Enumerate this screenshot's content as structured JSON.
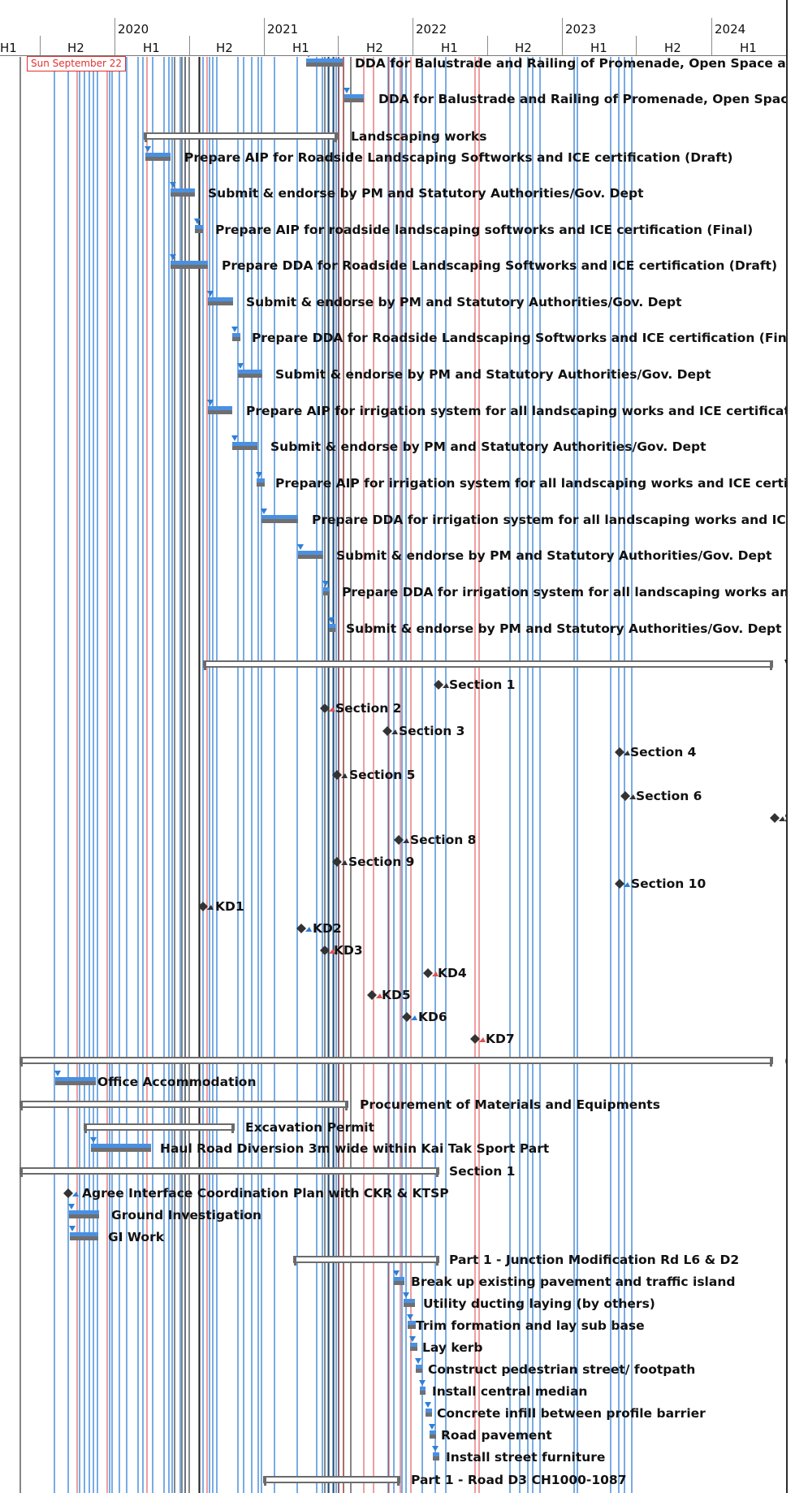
{
  "timeline": {
    "years": [
      "2020",
      "2021",
      "2022",
      "2023",
      "2024"
    ],
    "halves": [
      "H1",
      "H2",
      "H1",
      "H2",
      "H1",
      "H2",
      "H1",
      "H2",
      "H1",
      "H2",
      "H1"
    ],
    "current_date_label": "Sun September 22"
  },
  "colors": {
    "dependency_blue": "#2f7fd6",
    "critical_red": "#e05050",
    "summary_bar": "#6b6b6b",
    "task_bar": "#4a90e2",
    "progress_bar": "#6f6f6f",
    "milestone_dark": "#333333"
  },
  "tasks": [
    {
      "label": "DDA for Balustrade and Railing of Promenade, Open Space and A"
    },
    {
      "label": "DDA for Balustrade and Railing of Promenade, Open Space an"
    },
    {
      "label": "Landscaping works"
    },
    {
      "label": "Prepare AIP for Roadside Landscaping Softworks and ICE certification (Draft)"
    },
    {
      "label": "Submit & endorse by PM and Statutory Authorities/Gov. Dept"
    },
    {
      "label": "Prepare AIP for roadside landscaping softworks and ICE certification (Final)"
    },
    {
      "label": "Prepare DDA for Roadside Landscaping Softworks and ICE certification (Draft)"
    },
    {
      "label": "Submit & endorse by PM and Statutory Authorities/Gov. Dept"
    },
    {
      "label": "Prepare DDA for Roadside Landscaping Softworks and ICE certification (Final)"
    },
    {
      "label": "Submit & endorse by PM and Statutory Authorities/Gov. Dept"
    },
    {
      "label": "Prepare AIP for irrigation system for all landscaping works and ICE certification ("
    },
    {
      "label": "Submit & endorse by PM and Statutory Authorities/Gov. Dept"
    },
    {
      "label": "Prepare AIP for irrigation system for all landscaping works and ICE certificati"
    },
    {
      "label": "Prepare DDA for irrigation system for all landscaping works and ICE cer"
    },
    {
      "label": "Submit & endorse by PM and Statutory Authorities/Gov. Dept"
    },
    {
      "label": "Prepare DDA for irrigation system for all landscaping works and IC"
    },
    {
      "label": "Submit & endorse by PM and Statutory Authorities/Gov. Dept"
    },
    {
      "label": "V"
    },
    {
      "label": "Section 1"
    },
    {
      "label": "Section 2"
    },
    {
      "label": "Section 3"
    },
    {
      "label": "Section 4"
    },
    {
      "label": "Section 5"
    },
    {
      "label": "Section 6"
    },
    {
      "label": "S"
    },
    {
      "label": "Section 8"
    },
    {
      "label": "Section 9"
    },
    {
      "label": "Section 10"
    },
    {
      "label": "KD1"
    },
    {
      "label": "KD2"
    },
    {
      "label": "KD3"
    },
    {
      "label": "KD4"
    },
    {
      "label": "KD5"
    },
    {
      "label": "KD6"
    },
    {
      "label": "KD7"
    },
    {
      "label": "("
    },
    {
      "label": "Office Accommodation"
    },
    {
      "label": "Procurement of Materials and Equipments"
    },
    {
      "label": "Excavation Permit"
    },
    {
      "label": "Haul Road Diversion 3m wide within Kai Tak Sport Part"
    },
    {
      "label": "Section 1"
    },
    {
      "label": "Agree Interface Coordination Plan with CKR & KTSP"
    },
    {
      "label": "Ground Investigation"
    },
    {
      "label": "GI Work"
    },
    {
      "label": "Part 1 - Junction Modification Rd L6 & D2"
    },
    {
      "label": "Break up existing pavement and traffic island"
    },
    {
      "label": "Utility ducting laying (by others)"
    },
    {
      "label": "Trim formation and lay sub base"
    },
    {
      "label": "Lay kerb"
    },
    {
      "label": "Construct pedestrian street/ footpath"
    },
    {
      "label": "Install central median"
    },
    {
      "label": "Concrete infill between profile barrier"
    },
    {
      "label": "Road pavement"
    },
    {
      "label": "Install street furniture"
    },
    {
      "label": "Part 1 - Road D3 CH1000-1087"
    }
  ]
}
